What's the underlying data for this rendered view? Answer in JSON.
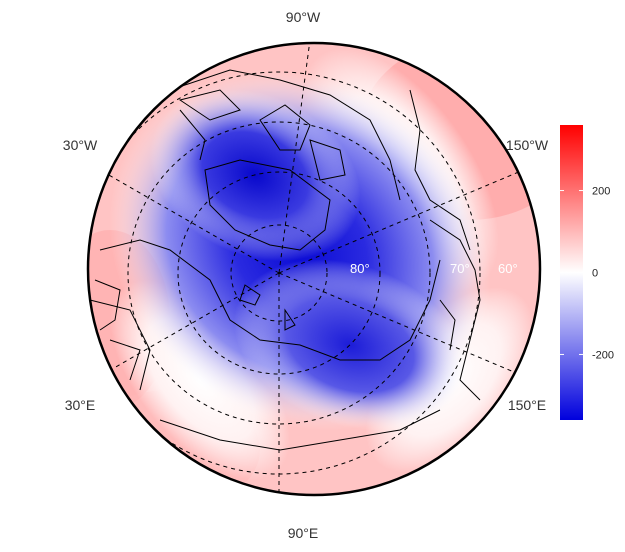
{
  "map": {
    "projection": "polar stereographic (north pole)",
    "longitude_labels": {
      "top": "90°W",
      "upper_left": "30°W",
      "upper_right": "150°W",
      "lower_left": "30°E",
      "lower_right": "150°E",
      "bottom": "90°E"
    },
    "latitude_labels": [
      "80°",
      "70°",
      "60°"
    ],
    "colorbar": {
      "ticks": [
        200,
        0,
        -200
      ],
      "tick_labels": [
        "200",
        "0",
        "-200"
      ],
      "range": [
        -360,
        360
      ],
      "colors": {
        "high": "#ff0000",
        "mid": "#ffffff",
        "low": "#0000dd"
      }
    },
    "field_colors": {
      "deep_blue": "#1a1ad8",
      "pale_red": "#ffb0b0",
      "background": "#ffffff"
    }
  }
}
